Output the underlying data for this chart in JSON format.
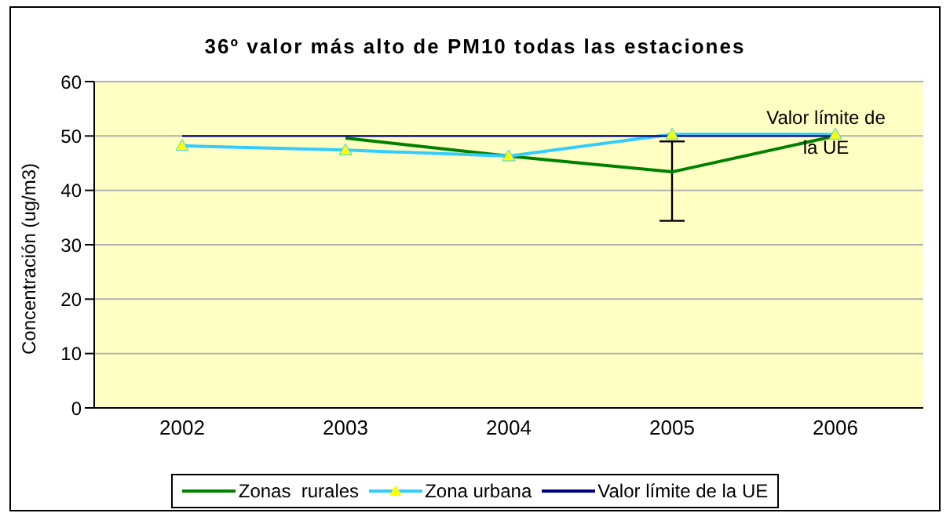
{
  "chart_data": {
    "type": "line",
    "title": "36º valor más alto de PM10  todas las estaciones",
    "ylabel": "Concentración (ug/m3)",
    "categories": [
      "2002",
      "2003",
      "2004",
      "2005",
      "2006"
    ],
    "series": [
      {
        "name": "Zonas  rurales",
        "color": "#008000",
        "values": [
          null,
          49.6,
          46.3,
          43.4,
          50
        ],
        "errors": [
          null,
          null,
          null,
          [
            34.4,
            49
          ],
          null
        ],
        "marker": "none"
      },
      {
        "name": "Zona urbana",
        "color": "#33ccff",
        "values": [
          48.2,
          47.4,
          46.3,
          50.3,
          50.3
        ],
        "marker": "triangle"
      },
      {
        "name": "Valor límite de la UE",
        "color": "#000080",
        "values": [
          50,
          50,
          50,
          50,
          50
        ],
        "marker": "none"
      }
    ],
    "annotations": [
      {
        "text": "Valor límite de la UE",
        "x": "2006",
        "y": 50
      }
    ],
    "ylim": [
      0,
      60
    ],
    "yticks": [
      0,
      10,
      20,
      30,
      40,
      50,
      60
    ],
    "grid": "y",
    "legend": "bottom"
  }
}
